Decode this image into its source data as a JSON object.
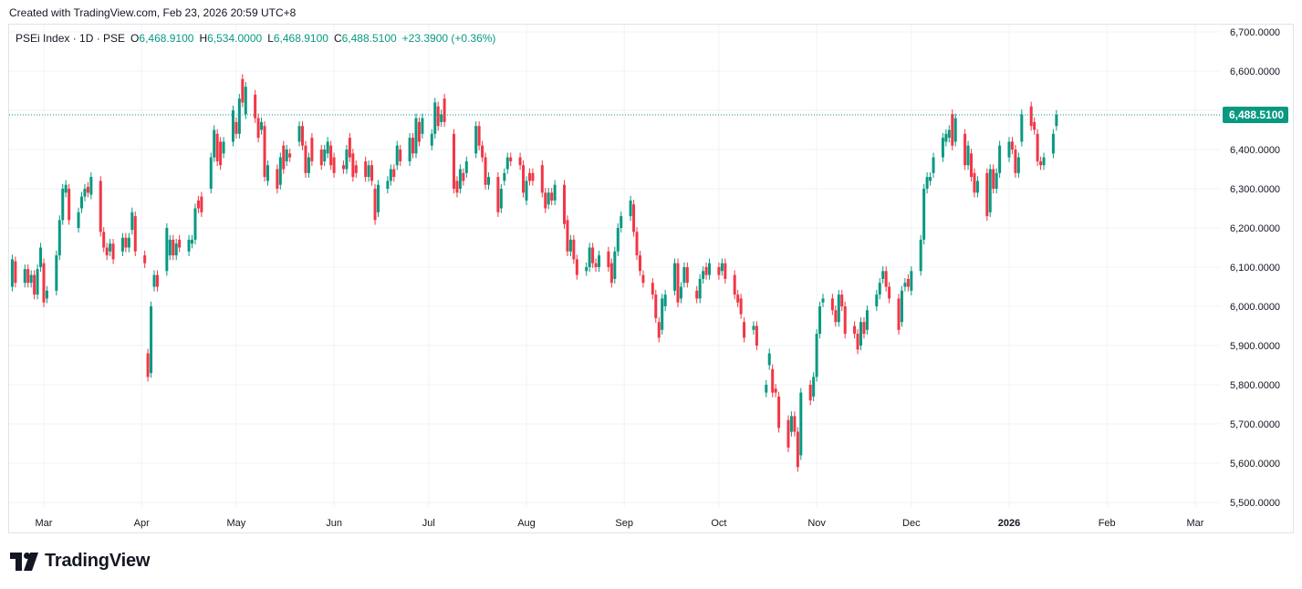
{
  "header": {
    "created": "Created with TradingView.com, Feb 23, 2026 20:59 UTC+8"
  },
  "legend": {
    "symbol": "PSEi Index · 1D · PSE",
    "o_label": "O",
    "o": "6,468.9100",
    "h_label": "H",
    "h": "6,534.0000",
    "l_label": "L",
    "l": "6,468.9100",
    "c_label": "C",
    "c": "6,488.5100",
    "change": "+23.3900 (+0.36%)"
  },
  "last_price_label": "6,488.5100",
  "brand": {
    "name": "TradingView"
  },
  "colors": {
    "up": "#089981",
    "down": "#f23645",
    "grid": "#f0f3fa",
    "text": "#131722"
  },
  "chart_data": {
    "type": "candlestick",
    "y_ticks": [
      "6,700.0000",
      "6,600.0000",
      "6,500.0000",
      "6,400.0000",
      "6,300.0000",
      "6,200.0000",
      "6,100.0000",
      "6,000.0000",
      "5,900.0000",
      "5,800.0000",
      "5,700.0000",
      "5,600.0000",
      "5,500.0000"
    ],
    "ylim": [
      5500,
      6700
    ],
    "x_ticks": [
      {
        "label": "Mar",
        "d": 0
      },
      {
        "label": "Apr",
        "d": 31
      },
      {
        "label": "May",
        "d": 61
      },
      {
        "label": "Jun",
        "d": 92
      },
      {
        "label": "Jul",
        "d": 122
      },
      {
        "label": "Aug",
        "d": 153
      },
      {
        "label": "Sep",
        "d": 184
      },
      {
        "label": "Oct",
        "d": 214
      },
      {
        "label": "Nov",
        "d": 245
      },
      {
        "label": "Dec",
        "d": 275
      },
      {
        "label": "2026",
        "d": 306,
        "bold": true
      },
      {
        "label": "Feb",
        "d": 337
      },
      {
        "label": "Mar",
        "d": 365
      }
    ],
    "last_price": 6488.51,
    "candles": [
      {
        "d": -10,
        "o": 6050,
        "c": 6120
      },
      {
        "d": -9,
        "o": 6115,
        "c": 6060
      },
      {
        "d": -6,
        "o": 6060,
        "c": 6095
      },
      {
        "d": -5,
        "o": 6095,
        "c": 6060
      },
      {
        "d": -4,
        "o": 6060,
        "c": 6080
      },
      {
        "d": -3,
        "o": 6080,
        "c": 6030
      },
      {
        "d": -2,
        "o": 6030,
        "c": 6095
      },
      {
        "d": -1,
        "o": 6100,
        "c": 6150
      },
      {
        "d": 0,
        "o": 6110,
        "c": 6010
      },
      {
        "d": 1,
        "o": 6020,
        "c": 6040
      },
      {
        "d": 4,
        "o": 6040,
        "c": 6130
      },
      {
        "d": 5,
        "o": 6130,
        "c": 6220
      },
      {
        "d": 6,
        "o": 6220,
        "c": 6300
      },
      {
        "d": 7,
        "o": 6290,
        "c": 6310
      },
      {
        "d": 8,
        "o": 6300,
        "c": 6220
      },
      {
        "d": 11,
        "o": 6200,
        "c": 6240
      },
      {
        "d": 12,
        "o": 6250,
        "c": 6280
      },
      {
        "d": 13,
        "o": 6280,
        "c": 6300
      },
      {
        "d": 14,
        "o": 6305,
        "c": 6290
      },
      {
        "d": 15,
        "o": 6285,
        "c": 6330
      },
      {
        "d": 18,
        "o": 6320,
        "c": 6190
      },
      {
        "d": 19,
        "o": 6190,
        "c": 6150
      },
      {
        "d": 20,
        "o": 6150,
        "c": 6130
      },
      {
        "d": 21,
        "o": 6140,
        "c": 6160
      },
      {
        "d": 22,
        "o": 6160,
        "c": 6120
      },
      {
        "d": 25,
        "o": 6140,
        "c": 6175
      },
      {
        "d": 26,
        "o": 6175,
        "c": 6150
      },
      {
        "d": 27,
        "o": 6150,
        "c": 6175
      },
      {
        "d": 28,
        "o": 6195,
        "c": 6240
      },
      {
        "d": 29,
        "o": 6230,
        "c": 6140
      },
      {
        "d": 32,
        "o": 6130,
        "c": 6110
      },
      {
        "d": 33,
        "o": 5880,
        "c": 5820
      },
      {
        "d": 34,
        "o": 5830,
        "c": 6000
      },
      {
        "d": 35,
        "o": 6050,
        "c": 6080
      },
      {
        "d": 36,
        "o": 6080,
        "c": 6050
      },
      {
        "d": 39,
        "o": 6090,
        "c": 6200
      },
      {
        "d": 40,
        "o": 6130,
        "c": 6170
      },
      {
        "d": 41,
        "o": 6170,
        "c": 6130
      },
      {
        "d": 42,
        "o": 6130,
        "c": 6160
      },
      {
        "d": 43,
        "o": 6170,
        "c": 6150
      },
      {
        "d": 46,
        "o": 6140,
        "c": 6170
      },
      {
        "d": 47,
        "o": 6160,
        "c": 6170
      },
      {
        "d": 48,
        "o": 6170,
        "c": 6250
      },
      {
        "d": 49,
        "o": 6270,
        "c": 6250
      },
      {
        "d": 50,
        "o": 6280,
        "c": 6240
      },
      {
        "d": 53,
        "o": 6300,
        "c": 6380
      },
      {
        "d": 54,
        "o": 6380,
        "c": 6450
      },
      {
        "d": 55,
        "o": 6440,
        "c": 6370
      },
      {
        "d": 56,
        "o": 6420,
        "c": 6360
      },
      {
        "d": 57,
        "o": 6390,
        "c": 6420
      },
      {
        "d": 60,
        "o": 6420,
        "c": 6500
      },
      {
        "d": 61,
        "o": 6470,
        "c": 6440
      },
      {
        "d": 62,
        "o": 6440,
        "c": 6530
      },
      {
        "d": 63,
        "o": 6580,
        "c": 6520
      },
      {
        "d": 64,
        "o": 6490,
        "c": 6560
      },
      {
        "d": 67,
        "o": 6540,
        "c": 6480
      },
      {
        "d": 68,
        "o": 6480,
        "c": 6430
      },
      {
        "d": 69,
        "o": 6450,
        "c": 6470
      },
      {
        "d": 70,
        "o": 6460,
        "c": 6330
      },
      {
        "d": 71,
        "o": 6320,
        "c": 6360
      },
      {
        "d": 74,
        "o": 6350,
        "c": 6300
      },
      {
        "d": 75,
        "o": 6310,
        "c": 6380
      },
      {
        "d": 76,
        "o": 6410,
        "c": 6350
      },
      {
        "d": 77,
        "o": 6370,
        "c": 6400
      },
      {
        "d": 78,
        "o": 6390,
        "c": 6380
      },
      {
        "d": 81,
        "o": 6420,
        "c": 6460
      },
      {
        "d": 82,
        "o": 6460,
        "c": 6410
      },
      {
        "d": 83,
        "o": 6410,
        "c": 6340
      },
      {
        "d": 84,
        "o": 6340,
        "c": 6380
      },
      {
        "d": 85,
        "o": 6430,
        "c": 6370
      },
      {
        "d": 88,
        "o": 6400,
        "c": 6360
      },
      {
        "d": 89,
        "o": 6370,
        "c": 6400
      },
      {
        "d": 90,
        "o": 6390,
        "c": 6420
      },
      {
        "d": 91,
        "o": 6410,
        "c": 6360
      },
      {
        "d": 92,
        "o": 6380,
        "c": 6340
      },
      {
        "d": 95,
        "o": 6360,
        "c": 6350
      },
      {
        "d": 96,
        "o": 6350,
        "c": 6400
      },
      {
        "d": 97,
        "o": 6430,
        "c": 6380
      },
      {
        "d": 98,
        "o": 6390,
        "c": 6330
      },
      {
        "d": 99,
        "o": 6360,
        "c": 6340
      },
      {
        "d": 102,
        "o": 6370,
        "c": 6330
      },
      {
        "d": 103,
        "o": 6330,
        "c": 6360
      },
      {
        "d": 104,
        "o": 6360,
        "c": 6320
      },
      {
        "d": 105,
        "o": 6300,
        "c": 6220
      },
      {
        "d": 106,
        "o": 6240,
        "c": 6310
      },
      {
        "d": 109,
        "o": 6300,
        "c": 6320
      },
      {
        "d": 110,
        "o": 6320,
        "c": 6350
      },
      {
        "d": 111,
        "o": 6350,
        "c": 6330
      },
      {
        "d": 112,
        "o": 6360,
        "c": 6410
      },
      {
        "d": 113,
        "o": 6400,
        "c": 6370
      },
      {
        "d": 116,
        "o": 6370,
        "c": 6430
      },
      {
        "d": 117,
        "o": 6430,
        "c": 6390
      },
      {
        "d": 118,
        "o": 6390,
        "c": 6480
      },
      {
        "d": 119,
        "o": 6470,
        "c": 6420
      },
      {
        "d": 120,
        "o": 6440,
        "c": 6480
      },
      {
        "d": 123,
        "o": 6410,
        "c": 6440
      },
      {
        "d": 124,
        "o": 6440,
        "c": 6520
      },
      {
        "d": 125,
        "o": 6510,
        "c": 6460
      },
      {
        "d": 126,
        "o": 6470,
        "c": 6490
      },
      {
        "d": 127,
        "o": 6530,
        "c": 6470
      },
      {
        "d": 130,
        "o": 6440,
        "c": 6300
      },
      {
        "d": 131,
        "o": 6320,
        "c": 6290
      },
      {
        "d": 132,
        "o": 6300,
        "c": 6350
      },
      {
        "d": 133,
        "o": 6340,
        "c": 6320
      },
      {
        "d": 134,
        "o": 6340,
        "c": 6370
      },
      {
        "d": 137,
        "o": 6390,
        "c": 6460
      },
      {
        "d": 138,
        "o": 6460,
        "c": 6410
      },
      {
        "d": 139,
        "o": 6410,
        "c": 6380
      },
      {
        "d": 140,
        "o": 6380,
        "c": 6310
      },
      {
        "d": 141,
        "o": 6310,
        "c": 6330
      },
      {
        "d": 144,
        "o": 6330,
        "c": 6240
      },
      {
        "d": 145,
        "o": 6250,
        "c": 6300
      },
      {
        "d": 146,
        "o": 6320,
        "c": 6340
      },
      {
        "d": 147,
        "o": 6350,
        "c": 6380
      },
      {
        "d": 148,
        "o": 6380,
        "c": 6370
      },
      {
        "d": 151,
        "o": 6380,
        "c": 6360
      },
      {
        "d": 152,
        "o": 6360,
        "c": 6290
      },
      {
        "d": 153,
        "o": 6270,
        "c": 6320
      },
      {
        "d": 154,
        "o": 6340,
        "c": 6320
      },
      {
        "d": 155,
        "o": 6340,
        "c": 6320
      },
      {
        "d": 158,
        "o": 6360,
        "c": 6290
      },
      {
        "d": 159,
        "o": 6290,
        "c": 6250
      },
      {
        "d": 160,
        "o": 6260,
        "c": 6290
      },
      {
        "d": 161,
        "o": 6290,
        "c": 6270
      },
      {
        "d": 162,
        "o": 6270,
        "c": 6310
      },
      {
        "d": 165,
        "o": 6310,
        "c": 6210
      },
      {
        "d": 166,
        "o": 6220,
        "c": 6140
      },
      {
        "d": 167,
        "o": 6140,
        "c": 6170
      },
      {
        "d": 168,
        "o": 6170,
        "c": 6120
      },
      {
        "d": 169,
        "o": 6120,
        "c": 6080
      },
      {
        "d": 172,
        "o": 6090,
        "c": 6100
      },
      {
        "d": 173,
        "o": 6100,
        "c": 6150
      },
      {
        "d": 174,
        "o": 6150,
        "c": 6110
      },
      {
        "d": 175,
        "o": 6110,
        "c": 6100
      },
      {
        "d": 176,
        "o": 6100,
        "c": 6130
      },
      {
        "d": 179,
        "o": 6140,
        "c": 6100
      },
      {
        "d": 180,
        "o": 6110,
        "c": 6060
      },
      {
        "d": 181,
        "o": 6070,
        "c": 6140
      },
      {
        "d": 182,
        "o": 6140,
        "c": 6200
      },
      {
        "d": 183,
        "o": 6200,
        "c": 6230
      },
      {
        "d": 186,
        "o": 6230,
        "c": 6270
      },
      {
        "d": 187,
        "o": 6260,
        "c": 6190
      },
      {
        "d": 188,
        "o": 6190,
        "c": 6130
      },
      {
        "d": 189,
        "o": 6130,
        "c": 6090
      },
      {
        "d": 190,
        "o": 6080,
        "c": 6060
      },
      {
        "d": 193,
        "o": 6060,
        "c": 6030
      },
      {
        "d": 194,
        "o": 6030,
        "c": 5970
      },
      {
        "d": 195,
        "o": 5960,
        "c": 5920
      },
      {
        "d": 196,
        "o": 5940,
        "c": 6020
      },
      {
        "d": 197,
        "o": 6000,
        "c": 6030
      },
      {
        "d": 200,
        "o": 6040,
        "c": 6110
      },
      {
        "d": 201,
        "o": 6110,
        "c": 6010
      },
      {
        "d": 202,
        "o": 6020,
        "c": 6050
      },
      {
        "d": 203,
        "o": 6060,
        "c": 6100
      },
      {
        "d": 204,
        "o": 6100,
        "c": 6060
      },
      {
        "d": 207,
        "o": 6040,
        "c": 6020
      },
      {
        "d": 208,
        "o": 6020,
        "c": 6070
      },
      {
        "d": 209,
        "o": 6070,
        "c": 6090
      },
      {
        "d": 210,
        "o": 6100,
        "c": 6080
      },
      {
        "d": 211,
        "o": 6080,
        "c": 6110
      },
      {
        "d": 214,
        "o": 6100,
        "c": 6080
      },
      {
        "d": 215,
        "o": 6090,
        "c": 6110
      },
      {
        "d": 216,
        "o": 6110,
        "c": 6070
      },
      {
        "d": 219,
        "o": 6080,
        "c": 6030
      },
      {
        "d": 220,
        "o": 6030,
        "c": 6010
      },
      {
        "d": 221,
        "o": 6020,
        "c": 5980
      },
      {
        "d": 222,
        "o": 5960,
        "c": 5920
      },
      {
        "d": 225,
        "o": 5940,
        "c": 5950
      },
      {
        "d": 226,
        "o": 5950,
        "c": 5900
      },
      {
        "d": 229,
        "o": 5780,
        "c": 5800
      },
      {
        "d": 230,
        "o": 5850,
        "c": 5880
      },
      {
        "d": 231,
        "o": 5840,
        "c": 5780
      },
      {
        "d": 232,
        "o": 5790,
        "c": 5780
      },
      {
        "d": 233,
        "o": 5770,
        "c": 5690
      },
      {
        "d": 236,
        "o": 5710,
        "c": 5640
      },
      {
        "d": 237,
        "o": 5680,
        "c": 5720
      },
      {
        "d": 238,
        "o": 5720,
        "c": 5680
      },
      {
        "d": 239,
        "o": 5680,
        "c": 5590
      },
      {
        "d": 240,
        "o": 5620,
        "c": 5780
      },
      {
        "d": 243,
        "o": 5800,
        "c": 5760
      },
      {
        "d": 244,
        "o": 5770,
        "c": 5820
      },
      {
        "d": 245,
        "o": 5820,
        "c": 5930
      },
      {
        "d": 246,
        "o": 5930,
        "c": 6000
      },
      {
        "d": 247,
        "o": 6010,
        "c": 6020
      },
      {
        "d": 250,
        "o": 6020,
        "c": 5990
      },
      {
        "d": 251,
        "o": 5990,
        "c": 5960
      },
      {
        "d": 252,
        "o": 5960,
        "c": 6030
      },
      {
        "d": 253,
        "o": 6030,
        "c": 6000
      },
      {
        "d": 254,
        "o": 6000,
        "c": 5930
      },
      {
        "d": 257,
        "o": 5950,
        "c": 5930
      },
      {
        "d": 258,
        "o": 5930,
        "c": 5890
      },
      {
        "d": 259,
        "o": 5900,
        "c": 5960
      },
      {
        "d": 260,
        "o": 5960,
        "c": 5930
      },
      {
        "d": 261,
        "o": 5940,
        "c": 5990
      },
      {
        "d": 264,
        "o": 6000,
        "c": 6030
      },
      {
        "d": 265,
        "o": 6030,
        "c": 6060
      },
      {
        "d": 266,
        "o": 6070,
        "c": 6090
      },
      {
        "d": 267,
        "o": 6090,
        "c": 6050
      },
      {
        "d": 268,
        "o": 6050,
        "c": 6020
      },
      {
        "d": 271,
        "o": 6020,
        "c": 5940
      },
      {
        "d": 272,
        "o": 5960,
        "c": 6040
      },
      {
        "d": 273,
        "o": 6050,
        "c": 6060
      },
      {
        "d": 274,
        "o": 6070,
        "c": 6050
      },
      {
        "d": 275,
        "o": 6040,
        "c": 6090
      },
      {
        "d": 278,
        "o": 6090,
        "c": 6170
      },
      {
        "d": 279,
        "o": 6170,
        "c": 6300
      },
      {
        "d": 280,
        "o": 6300,
        "c": 6330
      },
      {
        "d": 281,
        "o": 6320,
        "c": 6330
      },
      {
        "d": 282,
        "o": 6340,
        "c": 6380
      },
      {
        "d": 285,
        "o": 6380,
        "c": 6430
      },
      {
        "d": 286,
        "o": 6420,
        "c": 6440
      },
      {
        "d": 287,
        "o": 6430,
        "c": 6450
      },
      {
        "d": 288,
        "o": 6490,
        "c": 6410
      },
      {
        "d": 289,
        "o": 6420,
        "c": 6480
      },
      {
        "d": 292,
        "o": 6440,
        "c": 6360
      },
      {
        "d": 293,
        "o": 6360,
        "c": 6410
      },
      {
        "d": 294,
        "o": 6390,
        "c": 6330
      },
      {
        "d": 295,
        "o": 6340,
        "c": 6290
      },
      {
        "d": 296,
        "o": 6290,
        "c": 6320
      },
      {
        "d": 299,
        "o": 6340,
        "c": 6230
      },
      {
        "d": 300,
        "o": 6240,
        "c": 6350
      },
      {
        "d": 301,
        "o": 6350,
        "c": 6300
      },
      {
        "d": 302,
        "o": 6300,
        "c": 6340
      },
      {
        "d": 303,
        "o": 6340,
        "c": 6410
      },
      {
        "d": 306,
        "o": 6380,
        "c": 6420
      },
      {
        "d": 307,
        "o": 6420,
        "c": 6400
      },
      {
        "d": 308,
        "o": 6400,
        "c": 6340
      },
      {
        "d": 309,
        "o": 6340,
        "c": 6380
      },
      {
        "d": 310,
        "o": 6420,
        "c": 6490
      },
      {
        "d": 313,
        "o": 6510,
        "c": 6460
      },
      {
        "d": 314,
        "o": 6470,
        "c": 6450
      },
      {
        "d": 315,
        "o": 6440,
        "c": 6370
      },
      {
        "d": 316,
        "o": 6370,
        "c": 6360
      },
      {
        "d": 317,
        "o": 6360,
        "c": 6380
      },
      {
        "d": 320,
        "o": 6390,
        "c": 6440
      },
      {
        "d": 321,
        "o": 6460,
        "c": 6488.51
      }
    ]
  }
}
